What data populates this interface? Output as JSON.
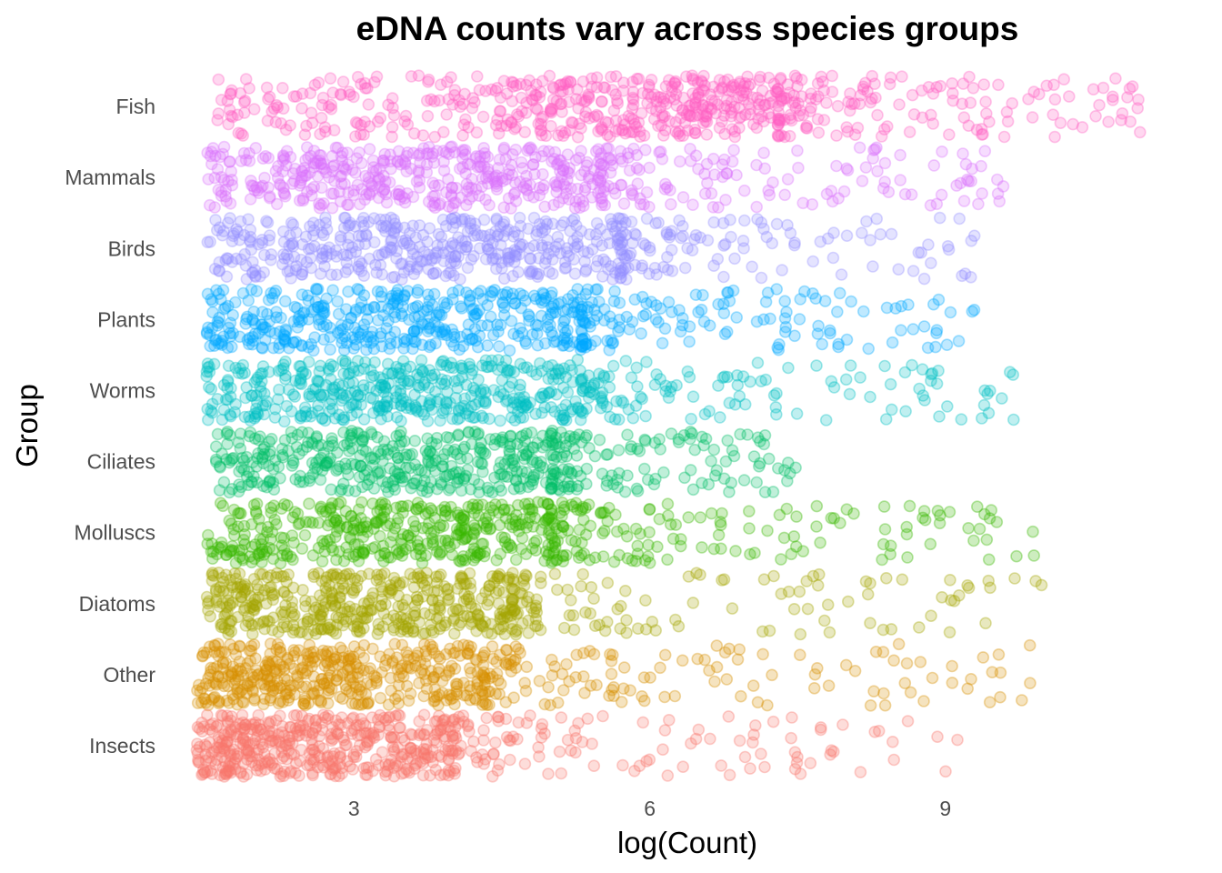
{
  "chart_data": {
    "type": "scatter",
    "subtype": "jittered strip plot",
    "title": "eDNA counts vary across species groups",
    "xlabel": "log(Count)",
    "ylabel": "Group",
    "xlim": [
      1.3,
      11.4
    ],
    "xticks": [
      3,
      6,
      9
    ],
    "grid": false,
    "legend": "none",
    "point_opacity": 0.25,
    "groups": [
      {
        "name": "Fish",
        "color": "#FF61C3",
        "n": 620,
        "min": 1.6,
        "q1": 4.6,
        "median": 6.1,
        "q3": 7.3,
        "max": 11.0
      },
      {
        "name": "Mammals",
        "color": "#DB72FB",
        "n": 560,
        "min": 1.5,
        "q1": 3.0,
        "median": 4.2,
        "q3": 5.5,
        "max": 9.6
      },
      {
        "name": "Birds",
        "color": "#9590FF",
        "n": 540,
        "min": 1.5,
        "q1": 3.2,
        "median": 4.4,
        "q3": 5.7,
        "max": 9.3
      },
      {
        "name": "Plants",
        "color": "#00A9FF",
        "n": 560,
        "min": 1.5,
        "q1": 2.9,
        "median": 4.0,
        "q3": 5.3,
        "max": 9.3
      },
      {
        "name": "Worms",
        "color": "#00BFC4",
        "n": 560,
        "min": 1.5,
        "q1": 2.9,
        "median": 4.0,
        "q3": 5.3,
        "max": 9.7
      },
      {
        "name": "Ciliates",
        "color": "#00BE67",
        "n": 520,
        "min": 1.6,
        "q1": 2.9,
        "median": 3.9,
        "q3": 5.0,
        "max": 7.6
      },
      {
        "name": "Molluscs",
        "color": "#39B600",
        "n": 560,
        "min": 1.5,
        "q1": 2.7,
        "median": 3.8,
        "q3": 5.0,
        "max": 9.9
      },
      {
        "name": "Diatoms",
        "color": "#A3A500",
        "n": 560,
        "min": 1.5,
        "q1": 2.4,
        "median": 3.4,
        "q3": 4.6,
        "max": 10.1
      },
      {
        "name": "Other",
        "color": "#D89000",
        "n": 560,
        "min": 1.4,
        "q1": 2.3,
        "median": 3.1,
        "q3": 4.3,
        "max": 9.9
      },
      {
        "name": "Insects",
        "color": "#F8766D",
        "n": 580,
        "min": 1.4,
        "q1": 2.1,
        "median": 2.9,
        "q3": 4.0,
        "max": 9.2
      }
    ]
  }
}
